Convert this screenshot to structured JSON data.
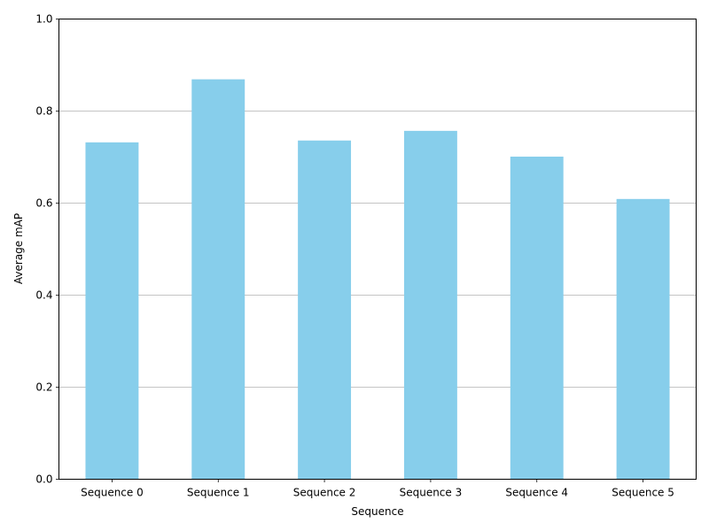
{
  "chart_data": {
    "type": "bar",
    "categories": [
      "Sequence 0",
      "Sequence 1",
      "Sequence 2",
      "Sequence 3",
      "Sequence 4",
      "Sequence 5"
    ],
    "values": [
      0.732,
      0.869,
      0.736,
      0.757,
      0.701,
      0.609
    ],
    "title": "",
    "xlabel": "Sequence",
    "ylabel": "Average mAP",
    "ylim": [
      0,
      1.0
    ],
    "yticks": [
      "0.0",
      "0.2",
      "0.4",
      "0.6",
      "0.8",
      "1.0"
    ],
    "grid": "y-axis",
    "bar_color": "#87ceeb",
    "grid_color": "#b0b0b0"
  }
}
